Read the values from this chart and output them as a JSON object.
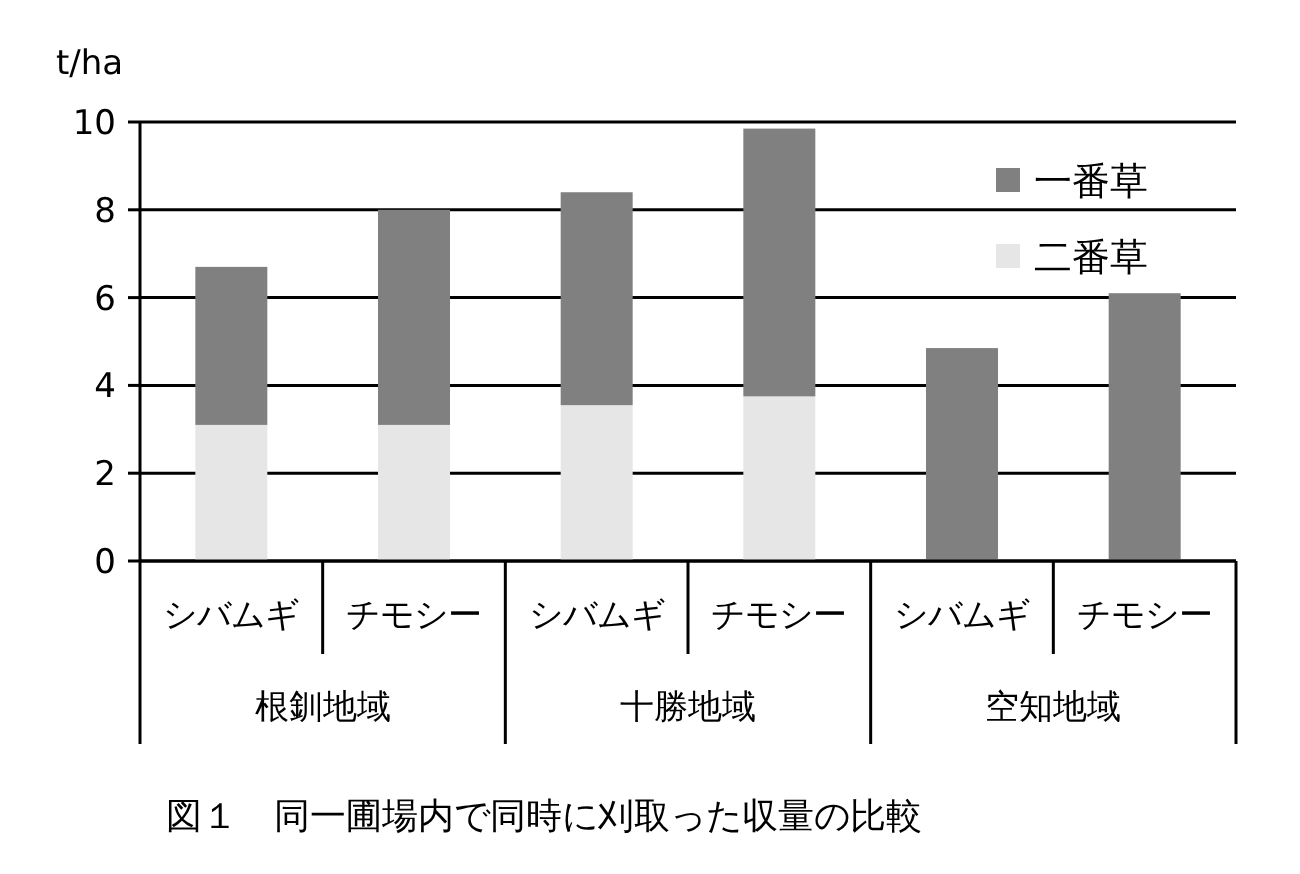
{
  "chart_data": {
    "type": "bar",
    "stacked": true,
    "ylabel": "t/ha",
    "categories": [
      "シバムギ",
      "チモシー",
      "シバムギ",
      "チモシー",
      "シバムギ",
      "チモシー"
    ],
    "series": [
      {
        "name": "二番草",
        "color": "#e6e6e6",
        "values": [
          3.1,
          3.1,
          3.55,
          3.75,
          0,
          0
        ]
      },
      {
        "name": "一番草",
        "color": "#808080",
        "values": [
          3.6,
          4.9,
          4.85,
          6.1,
          4.85,
          6.1
        ]
      }
    ],
    "ylim": [
      0,
      10
    ],
    "yticks": [
      0,
      2,
      4,
      6,
      8,
      10
    ],
    "grid": "y",
    "legend": "top right",
    "annotations": [
      "根釧地域",
      "十勝地域",
      "空知地域",
      "図１　同一圃場内で同時に刈取った収量の比較"
    ]
  }
}
